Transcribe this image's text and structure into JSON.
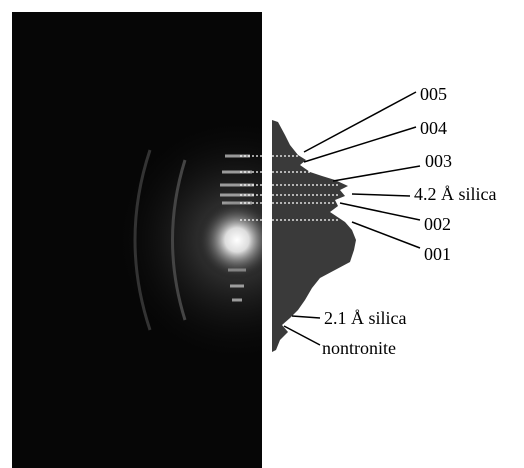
{
  "labels": [
    "005",
    "004",
    "003",
    "4.2 Å silica",
    "002",
    "001",
    "2.1 Å silica",
    "nontronite"
  ]
}
